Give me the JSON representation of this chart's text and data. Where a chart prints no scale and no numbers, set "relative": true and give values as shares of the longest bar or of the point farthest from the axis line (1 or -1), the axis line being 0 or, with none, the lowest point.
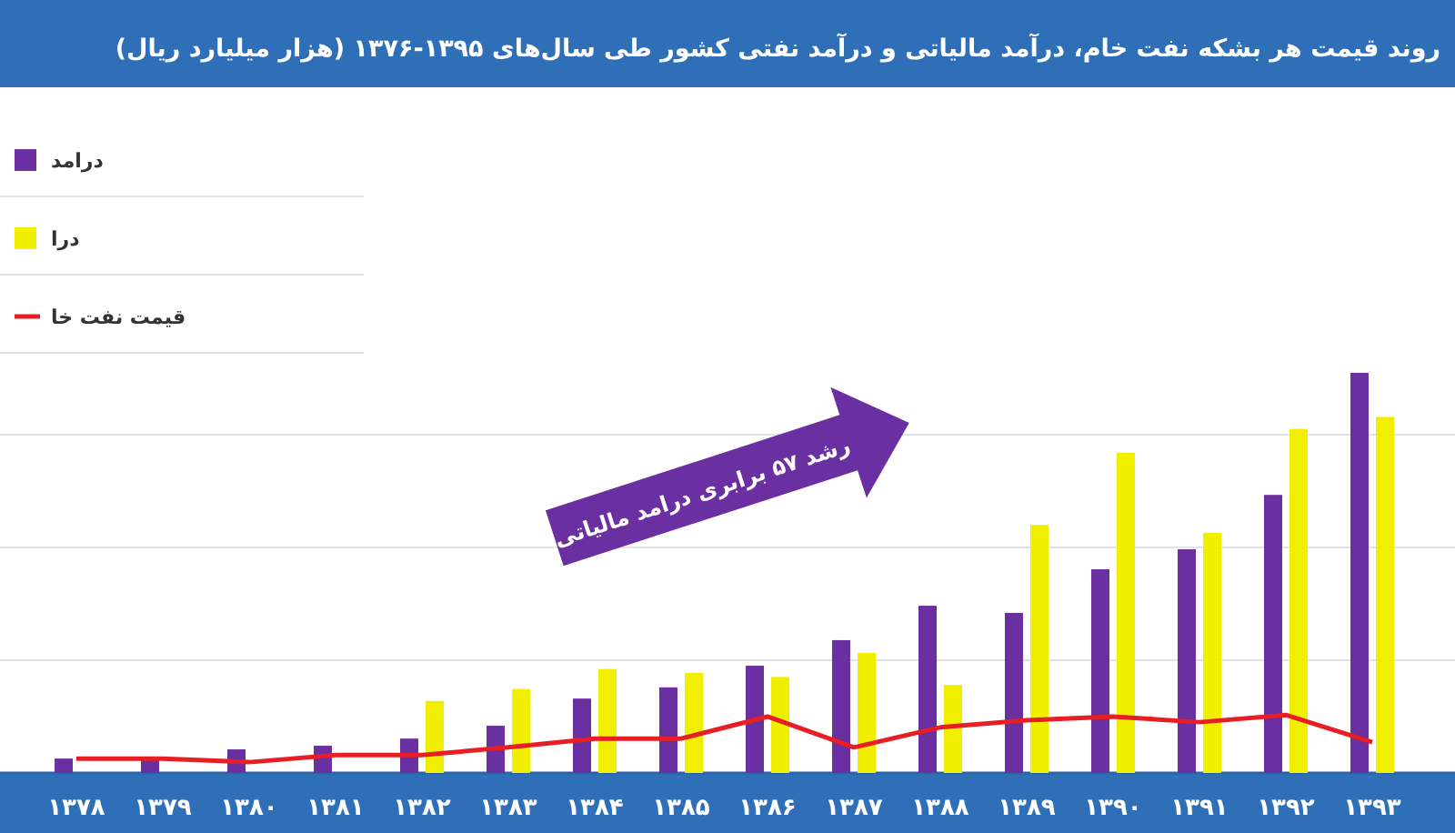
{
  "chart_data": {
    "type": "bar",
    "title": "روند قیمت هر بشکه نفت خام، درآمد مالیاتی و درآمد نفتی کشور طی سال‌های ۱۳۹۵-۱۳۷۶ (هزار میلیارد ریال)",
    "categories": [
      "۱۳۷۸",
      "۱۳۷۹",
      "۱۳۸۰",
      "۱۳۸۱",
      "۱۳۸۲",
      "۱۳۸۳",
      "۱۳۸۴",
      "۱۳۸۵",
      "۱۳۸۶",
      "۱۳۸۷",
      "۱۳۸۸",
      "۱۳۸۹",
      "۱۳۹۰",
      "۱۳۹۱",
      "۱۳۹۲",
      "۱۳۹۳"
    ],
    "relative": true,
    "series": [
      {
        "name": "درامد",
        "color": "#6a2fa0",
        "values": [
          0.036,
          0.036,
          0.059,
          0.068,
          0.086,
          0.118,
          0.186,
          0.214,
          0.268,
          0.332,
          0.418,
          0.4,
          0.509,
          0.559,
          0.695,
          1
        ]
      },
      {
        "name": "درا",
        "color": "#f2ee00",
        "values": [
          null,
          null,
          null,
          null,
          0.18,
          0.21,
          0.26,
          0.25,
          0.24,
          0.3,
          0.22,
          0.62,
          0.8,
          0.6,
          0.86,
          0.89
        ]
      },
      {
        "name": "قیمت نفت خا",
        "type": "line",
        "color": "#e81e25",
        "values": [
          0.036,
          0.036,
          0.027,
          0.045,
          0.045,
          0.064,
          0.086,
          0.086,
          0.141,
          0.064,
          0.114,
          0.132,
          0.141,
          0.127,
          0.145,
          0.077
        ]
      }
    ],
    "grid": "y",
    "legend": "top left",
    "annotations": [
      "رشد ۵۷ برابری درامد مالیاتی"
    ]
  }
}
